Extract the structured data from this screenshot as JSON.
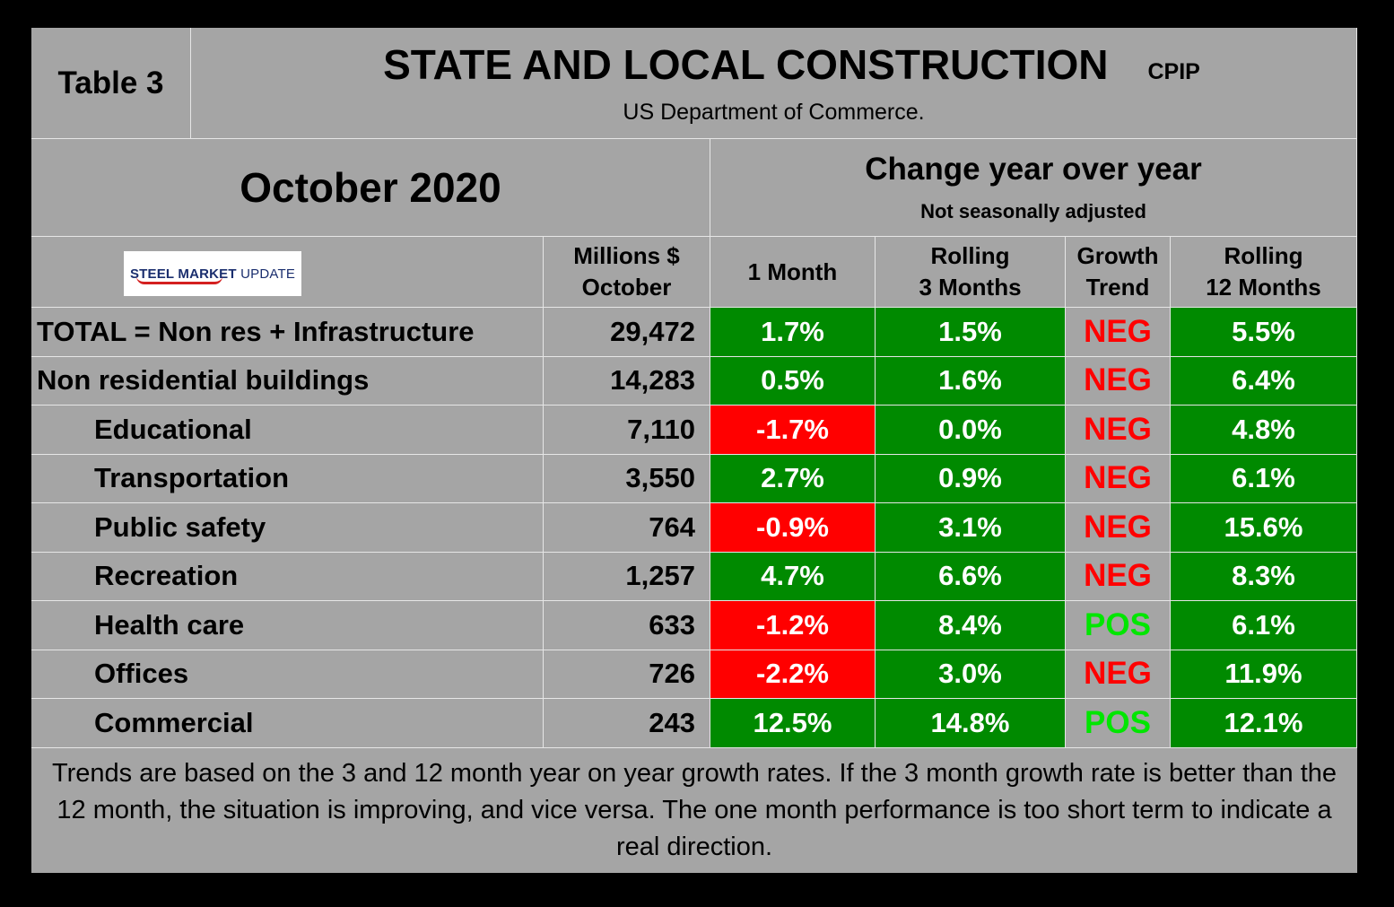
{
  "title": "STATE AND LOCAL CONSTRUCTION",
  "title_tag": "CPIP",
  "table_label": "Table 3",
  "source": "US Department of Commerce.",
  "period": "October 2020",
  "change_header": "Change year over year",
  "change_subheader": "Not seasonally adjusted",
  "logo": {
    "part1": "STEEL MARKET",
    "part2": "UPDATE"
  },
  "columns": {
    "millions_line1": "Millions $",
    "millions_line2": "October",
    "one_month": "1 Month",
    "rolling3_line1": "Rolling",
    "rolling3_line2": "3 Months",
    "trend_line1": "Growth",
    "trend_line2": "Trend",
    "rolling12_line1": "Rolling",
    "rolling12_line2": "12 Months"
  },
  "colors": {
    "positive": "#008a00",
    "negative": "#ff0000",
    "trend_neg": "#ff0000",
    "trend_pos": "#00e600"
  },
  "chart_data": {
    "type": "table",
    "title": "STATE AND LOCAL CONSTRUCTION",
    "rows": [
      {
        "label": "TOTAL = Non res + Infrastructure",
        "millions": "29,472",
        "one_month": "1.7%",
        "rolling3": "1.5%",
        "trend": "NEG",
        "rolling12": "5.5%"
      },
      {
        "label": "Non residential buildings",
        "millions": "14,283",
        "one_month": "0.5%",
        "rolling3": "1.6%",
        "trend": "NEG",
        "rolling12": "6.4%"
      },
      {
        "label": "Educational",
        "millions": "7,110",
        "one_month": "-1.7%",
        "rolling3": "0.0%",
        "trend": "NEG",
        "rolling12": "4.8%"
      },
      {
        "label": "Transportation",
        "millions": "3,550",
        "one_month": "2.7%",
        "rolling3": "0.9%",
        "trend": "NEG",
        "rolling12": "6.1%"
      },
      {
        "label": "Public safety",
        "millions": "764",
        "one_month": "-0.9%",
        "rolling3": "3.1%",
        "trend": "NEG",
        "rolling12": "15.6%"
      },
      {
        "label": "Recreation",
        "millions": "1,257",
        "one_month": "4.7%",
        "rolling3": "6.6%",
        "trend": "NEG",
        "rolling12": "8.3%"
      },
      {
        "label": "Health care",
        "millions": "633",
        "one_month": "-1.2%",
        "rolling3": "8.4%",
        "trend": "POS",
        "rolling12": "6.1%"
      },
      {
        "label": "Offices",
        "millions": "726",
        "one_month": "-2.2%",
        "rolling3": "3.0%",
        "trend": "NEG",
        "rolling12": "11.9%"
      },
      {
        "label": "Commercial",
        "millions": "243",
        "one_month": "12.5%",
        "rolling3": "14.8%",
        "trend": "POS",
        "rolling12": "12.1%"
      }
    ]
  },
  "footnote": "Trends are based on the 3 and 12 month year on year growth rates. If the 3 month growth rate is better than the 12 month, the situation is improving, and vice versa. The one month performance is too short term to indicate a real direction."
}
